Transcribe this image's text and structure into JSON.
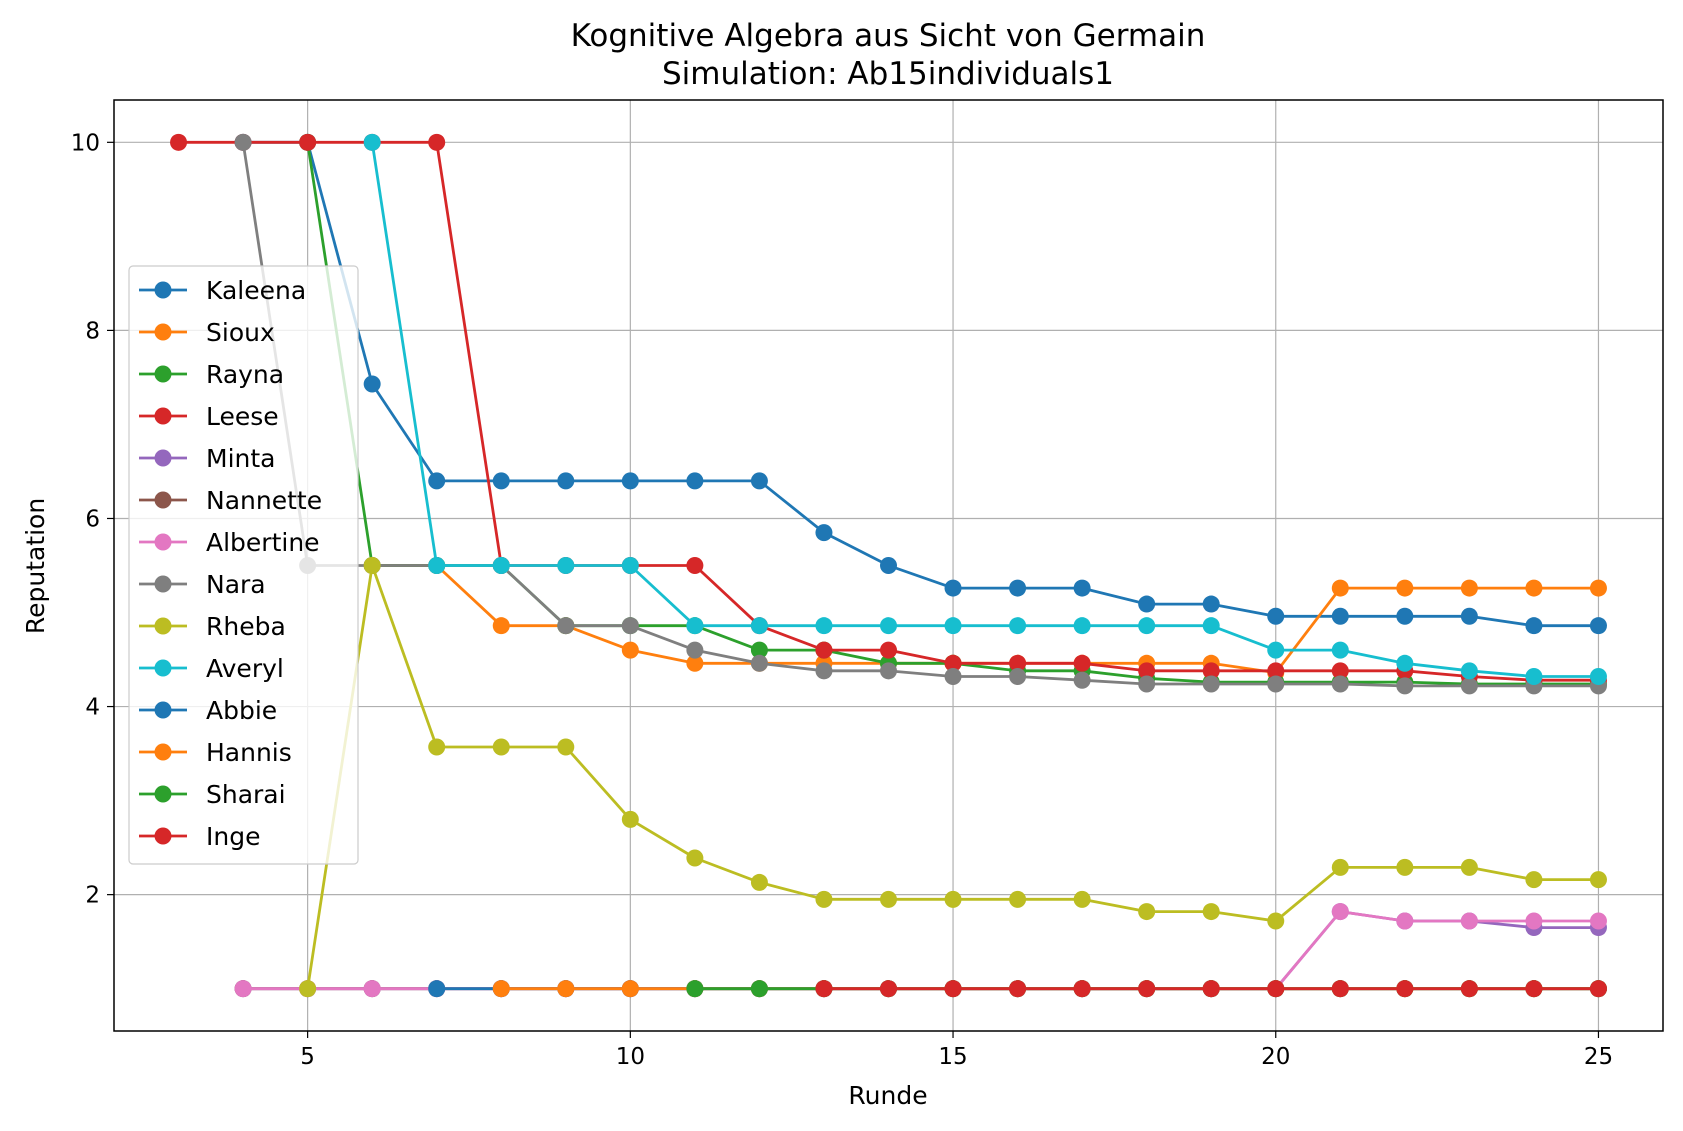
{
  "chart_data": {
    "type": "line",
    "title": "Kognitive Algebra aus Sicht von Germain",
    "subtitle": "Simulation: Ab15individuals1",
    "xlabel": "Runde",
    "ylabel": "Reputation",
    "xlim": [
      2,
      26
    ],
    "ylim": [
      0.55,
      10.45
    ],
    "xticks": [
      5,
      10,
      15,
      20,
      25
    ],
    "yticks": [
      2,
      4,
      6,
      8,
      10
    ],
    "grid": true,
    "legend_position": "center-left",
    "series": [
      {
        "name": "Kaleena",
        "color": "#1f77b4",
        "x": [
          4,
          5,
          6,
          7,
          8,
          9,
          10,
          11,
          12,
          13,
          14,
          15,
          16,
          17,
          18,
          19,
          20,
          21,
          22,
          23,
          24,
          25
        ],
        "y": [
          10,
          10,
          7.43,
          6.4,
          6.4,
          6.4,
          6.4,
          6.4,
          6.4,
          5.85,
          5.5,
          5.26,
          5.26,
          5.26,
          5.09,
          5.09,
          4.96,
          4.96,
          4.96,
          4.96,
          4.86,
          4.86
        ]
      },
      {
        "name": "Sioux",
        "color": "#ff7f0e",
        "x": [
          6,
          7,
          8,
          9,
          10,
          11,
          12,
          13,
          14,
          15,
          16,
          17,
          18,
          19,
          20,
          21,
          22,
          23,
          24,
          25
        ],
        "y": [
          5.5,
          5.5,
          4.86,
          4.86,
          4.6,
          4.46,
          4.46,
          4.46,
          4.46,
          4.46,
          4.46,
          4.46,
          4.46,
          4.46,
          4.36,
          5.26,
          5.26,
          5.26,
          5.26,
          5.26
        ]
      },
      {
        "name": "Rayna",
        "color": "#2ca02c",
        "x": [
          5,
          6,
          7,
          8,
          9,
          10,
          11,
          12,
          13,
          14,
          15,
          16,
          17,
          18,
          19,
          20,
          21,
          22,
          23,
          24,
          25
        ],
        "y": [
          10,
          5.5,
          5.5,
          5.5,
          4.86,
          4.86,
          4.86,
          4.6,
          4.6,
          4.46,
          4.46,
          4.38,
          4.38,
          4.3,
          4.26,
          4.26,
          4.26,
          4.26,
          4.24,
          4.24,
          4.24
        ]
      },
      {
        "name": "Leese",
        "color": "#d62728",
        "x": [
          3,
          4,
          5,
          6,
          7,
          8,
          9,
          10,
          11,
          12,
          13,
          14,
          15,
          16,
          17,
          18,
          19,
          20,
          21,
          22,
          23,
          24,
          25
        ],
        "y": [
          10,
          10,
          10,
          10,
          10,
          5.5,
          5.5,
          5.5,
          5.5,
          4.86,
          4.6,
          4.6,
          4.46,
          4.46,
          4.46,
          4.38,
          4.38,
          4.38,
          4.38,
          4.38,
          4.32,
          4.28,
          4.28
        ]
      },
      {
        "name": "Minta",
        "color": "#9467bd",
        "x": [
          4,
          5,
          6,
          7,
          8,
          9,
          10,
          11,
          12,
          13,
          14,
          15,
          16,
          17,
          18,
          19,
          20,
          21,
          22,
          23,
          24,
          25
        ],
        "y": [
          1,
          1,
          1,
          1,
          1,
          1,
          1,
          1,
          1,
          1,
          1,
          1,
          1,
          1,
          1,
          1,
          1,
          1.82,
          1.72,
          1.72,
          1.65,
          1.65
        ]
      },
      {
        "name": "Nannette",
        "color": "#8c564b",
        "x": [
          4,
          5,
          6,
          7,
          8,
          9,
          10,
          11,
          12,
          13,
          14,
          15,
          16,
          17,
          18,
          19,
          20,
          21,
          22,
          23,
          24,
          25
        ],
        "y": [
          1,
          1,
          1,
          1,
          1,
          1,
          1,
          1,
          1,
          1,
          1,
          1,
          1,
          1,
          1,
          1,
          1,
          1,
          1,
          1,
          1,
          1
        ]
      },
      {
        "name": "Albertine",
        "color": "#e377c2",
        "x": [
          4,
          5,
          6,
          7,
          8,
          9,
          10,
          11,
          12,
          13,
          14,
          15,
          16,
          17,
          18,
          19,
          20,
          21,
          22,
          23,
          24,
          25
        ],
        "y": [
          1,
          1,
          1,
          1,
          1,
          1,
          1,
          1,
          1,
          1,
          1,
          1,
          1,
          1,
          1,
          1,
          1,
          1.82,
          1.72,
          1.72,
          1.72,
          1.72
        ]
      },
      {
        "name": "Nara",
        "color": "#7f7f7f",
        "x": [
          4,
          5,
          6,
          7,
          8,
          9,
          10,
          11,
          12,
          13,
          14,
          15,
          16,
          17,
          18,
          19,
          20,
          21,
          22,
          23,
          24,
          25
        ],
        "y": [
          10,
          5.5,
          5.5,
          5.5,
          5.5,
          4.86,
          4.86,
          4.6,
          4.46,
          4.38,
          4.38,
          4.32,
          4.32,
          4.28,
          4.24,
          4.24,
          4.24,
          4.24,
          4.22,
          4.22,
          4.22,
          4.22
        ]
      },
      {
        "name": "Rheba",
        "color": "#bcbd22",
        "x": [
          5,
          6,
          7,
          8,
          9,
          10,
          11,
          12,
          13,
          14,
          15,
          16,
          17,
          18,
          19,
          20,
          21,
          22,
          23,
          24,
          25
        ],
        "y": [
          1,
          5.5,
          3.57,
          3.57,
          3.57,
          2.8,
          2.39,
          2.13,
          1.95,
          1.95,
          1.95,
          1.95,
          1.95,
          1.82,
          1.82,
          1.72,
          2.29,
          2.29,
          2.29,
          2.16,
          2.16
        ]
      },
      {
        "name": "Averyl",
        "color": "#17becf",
        "x": [
          6,
          7,
          8,
          9,
          10,
          11,
          12,
          13,
          14,
          15,
          16,
          17,
          18,
          19,
          20,
          21,
          22,
          23,
          24,
          25
        ],
        "y": [
          10,
          5.5,
          5.5,
          5.5,
          5.5,
          4.86,
          4.86,
          4.86,
          4.86,
          4.86,
          4.86,
          4.86,
          4.86,
          4.86,
          4.6,
          4.6,
          4.46,
          4.38,
          4.32,
          4.32
        ]
      },
      {
        "name": "Abbie",
        "color": "#1f77b4",
        "x": [
          7,
          8,
          9,
          10,
          11,
          12,
          13,
          14,
          15,
          16,
          17,
          18,
          19,
          20,
          21,
          22,
          23,
          24,
          25
        ],
        "y": [
          1,
          1,
          1,
          1,
          1,
          1,
          1,
          1,
          1,
          1,
          1,
          1,
          1,
          1,
          1,
          1,
          1,
          1,
          1
        ]
      },
      {
        "name": "Hannis",
        "color": "#ff7f0e",
        "x": [
          8,
          9,
          10,
          11,
          12,
          13,
          14,
          15,
          16,
          17,
          18,
          19,
          20,
          21,
          22,
          23,
          24,
          25
        ],
        "y": [
          1,
          1,
          1,
          1,
          1,
          1,
          1,
          1,
          1,
          1,
          1,
          1,
          1,
          1,
          1,
          1,
          1,
          1
        ]
      },
      {
        "name": "Sharai",
        "color": "#2ca02c",
        "x": [
          11,
          12,
          13,
          14,
          15,
          16,
          17,
          18,
          19,
          20,
          21,
          22,
          23,
          24,
          25
        ],
        "y": [
          1,
          1,
          1,
          1,
          1,
          1,
          1,
          1,
          1,
          1,
          1,
          1,
          1,
          1,
          1
        ]
      },
      {
        "name": "Inge",
        "color": "#d62728",
        "x": [
          13,
          14,
          15,
          16,
          17,
          18,
          19,
          20,
          21,
          22,
          23,
          24,
          25
        ],
        "y": [
          1,
          1,
          1,
          1,
          1,
          1,
          1,
          1,
          1,
          1,
          1,
          1,
          1
        ]
      }
    ]
  }
}
